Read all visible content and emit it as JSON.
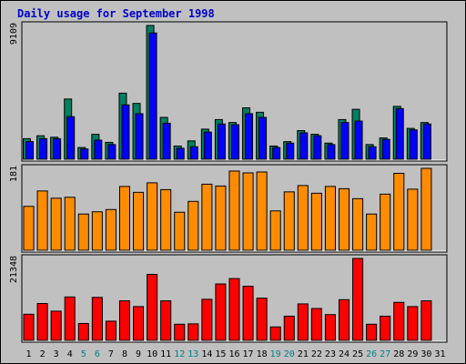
{
  "title": "Daily usage for September 1998",
  "colors": {
    "background": "#c0c0c0",
    "title": "#0000cc",
    "hits": "#008060",
    "files": "#0000ff",
    "kbytes": "#ff8c00",
    "visits": "#ff0000",
    "weekday_label": "#000000",
    "weekend_label": "#008080"
  },
  "chart_data": [
    {
      "type": "bar",
      "panel": "top",
      "max_label": "9109",
      "ylim": [
        0,
        9109
      ],
      "categories": [
        "1",
        "2",
        "3",
        "4",
        "5",
        "6",
        "7",
        "8",
        "9",
        "10",
        "11",
        "12",
        "13",
        "14",
        "15",
        "16",
        "17",
        "18",
        "19",
        "20",
        "21",
        "22",
        "23",
        "24",
        "25",
        "26",
        "27",
        "28",
        "29",
        "30",
        "31"
      ],
      "weekend_days": [
        "5",
        "6",
        "12",
        "13",
        "19",
        "20",
        "26",
        "27"
      ],
      "series": [
        {
          "values": [
            1400,
            1600,
            1500,
            4100,
            800,
            1700,
            1150,
            4500,
            3800,
            9109,
            2850,
            900,
            1250,
            2050,
            2700,
            2500,
            3500,
            3200,
            900,
            1200,
            1950,
            1700,
            1100,
            2700,
            3400,
            1000,
            1450,
            3600,
            2100,
            2500,
            null
          ]
        },
        {
          "values": [
            1200,
            1400,
            1400,
            2900,
            700,
            1300,
            1000,
            3700,
            3100,
            8600,
            2450,
            750,
            850,
            1850,
            2400,
            2350,
            3100,
            2850,
            800,
            1100,
            1800,
            1600,
            1000,
            2500,
            2600,
            850,
            1350,
            3450,
            2000,
            2400,
            null
          ]
        }
      ]
    },
    {
      "type": "bar",
      "panel": "middle",
      "max_label": "181",
      "ylim": [
        0,
        181
      ],
      "categories": [
        "1",
        "2",
        "3",
        "4",
        "5",
        "6",
        "7",
        "8",
        "9",
        "10",
        "11",
        "12",
        "13",
        "14",
        "15",
        "16",
        "17",
        "18",
        "19",
        "20",
        "21",
        "22",
        "23",
        "24",
        "25",
        "26",
        "27",
        "28",
        "29",
        "30",
        "31"
      ],
      "series": [
        {
          "values": [
            97,
            131,
            115,
            117,
            80,
            85,
            90,
            141,
            128,
            149,
            134,
            84,
            108,
            146,
            142,
            175,
            171,
            173,
            87,
            129,
            143,
            126,
            141,
            136,
            114,
            80,
            124,
            170,
            135,
            181,
            null
          ]
        }
      ]
    },
    {
      "type": "bar",
      "panel": "bottom",
      "max_label": "21348",
      "ylim": [
        0,
        21348
      ],
      "categories": [
        "1",
        "2",
        "3",
        "4",
        "5",
        "6",
        "7",
        "8",
        "9",
        "10",
        "11",
        "12",
        "13",
        "14",
        "15",
        "16",
        "17",
        "18",
        "19",
        "20",
        "21",
        "22",
        "23",
        "24",
        "25",
        "26",
        "27",
        "28",
        "29",
        "30",
        "31"
      ],
      "series": [
        {
          "values": [
            6800,
            9600,
            7600,
            11300,
            4400,
            11200,
            5000,
            10300,
            8800,
            17200,
            10300,
            4200,
            4300,
            10700,
            14700,
            16100,
            14100,
            11000,
            3500,
            6300,
            9500,
            8300,
            6700,
            10600,
            21348,
            4200,
            6300,
            9900,
            8800,
            10300,
            null
          ]
        }
      ]
    }
  ]
}
